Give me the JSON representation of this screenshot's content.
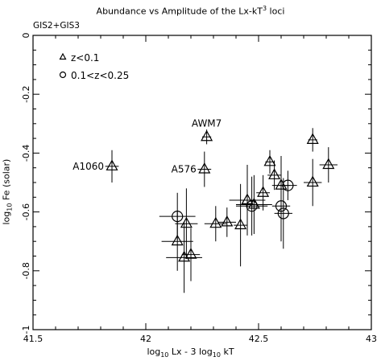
{
  "chart_data": {
    "type": "scatter",
    "title_prefix": "Abundance vs Amplitude of the Lx-kT",
    "title_exp": "3",
    "title_suffix": " loci",
    "subtitle": "GIS2+GIS3",
    "xlabel": {
      "p1": "log",
      "s1": "10",
      "p2": " Lx - 3 log",
      "s2": "10",
      "p3": " kT"
    },
    "ylabel": {
      "p1": "log",
      "s1": "10",
      "p2": " Fe (solar)"
    },
    "xlim": [
      41.5,
      43
    ],
    "ylim": [
      -1,
      0
    ],
    "xticks": [
      41.5,
      42,
      42.5,
      43
    ],
    "xtick_labels": [
      "41.5",
      "42",
      "42.5",
      "43"
    ],
    "yticks": [
      -1,
      -0.8,
      -0.6,
      -0.4,
      -0.2,
      0
    ],
    "ytick_labels": [
      "-1",
      "-0.8",
      "-0.6",
      "-0.4",
      "-0.2",
      "0"
    ],
    "legend_position": "top-left",
    "series": [
      {
        "name": "z<0.1",
        "marker": "triangle",
        "points": [
          {
            "x": 41.85,
            "y": -0.445,
            "xerr": 0.03,
            "yerr": 0.055,
            "label": "A1060"
          },
          {
            "x": 42.27,
            "y": -0.345,
            "xerr": 0.02,
            "yerr": 0.025,
            "label": "AWM7"
          },
          {
            "x": 42.26,
            "y": -0.455,
            "xerr": 0.03,
            "yerr": 0.06,
            "label": "A576"
          },
          {
            "x": 42.14,
            "y": -0.7,
            "xerr": 0.07,
            "yerr": 0.1
          },
          {
            "x": 42.17,
            "y": -0.755,
            "xerr": 0.08,
            "yerr": 0.12
          },
          {
            "x": 42.18,
            "y": -0.64,
            "xerr": 0.05,
            "yerr": 0.12
          },
          {
            "x": 42.2,
            "y": -0.745,
            "xerr": 0.04,
            "yerr": 0.09
          },
          {
            "x": 42.31,
            "y": -0.64,
            "xerr": 0.05,
            "yerr": 0.06
          },
          {
            "x": 42.36,
            "y": -0.635,
            "xerr": 0.04,
            "yerr": 0.05
          },
          {
            "x": 42.42,
            "y": -0.645,
            "xerr": 0.03,
            "yerr": 0.14
          },
          {
            "x": 42.45,
            "y": -0.56,
            "xerr": 0.08,
            "yerr": 0.12
          },
          {
            "x": 42.48,
            "y": -0.575,
            "xerr": 0.08,
            "yerr": 0.1
          },
          {
            "x": 42.52,
            "y": -0.535,
            "xerr": 0.03,
            "yerr": 0.06
          },
          {
            "x": 42.55,
            "y": -0.43,
            "xerr": 0.02,
            "yerr": 0.04
          },
          {
            "x": 42.57,
            "y": -0.475,
            "xerr": 0.03,
            "yerr": 0.05
          },
          {
            "x": 42.6,
            "y": -0.51,
            "xerr": 0.04,
            "yerr": 0.1
          },
          {
            "x": 42.74,
            "y": -0.355,
            "xerr": 0.02,
            "yerr": 0.04
          },
          {
            "x": 42.74,
            "y": -0.5,
            "xerr": 0.04,
            "yerr": 0.08
          },
          {
            "x": 42.81,
            "y": -0.44,
            "xerr": 0.04,
            "yerr": 0.06
          }
        ]
      },
      {
        "name": "0.1<z<0.25",
        "marker": "circle",
        "points": [
          {
            "x": 42.14,
            "y": -0.615,
            "xerr": 0.08,
            "yerr": 0.08
          },
          {
            "x": 42.47,
            "y": -0.58,
            "xerr": 0.07,
            "yerr": 0.1
          },
          {
            "x": 42.6,
            "y": -0.58,
            "xerr": 0.04,
            "yerr": 0.12
          },
          {
            "x": 42.61,
            "y": -0.605,
            "xerr": 0.04,
            "yerr": 0.12
          },
          {
            "x": 42.63,
            "y": -0.51,
            "xerr": 0.04,
            "yerr": 0.05
          }
        ]
      }
    ]
  }
}
